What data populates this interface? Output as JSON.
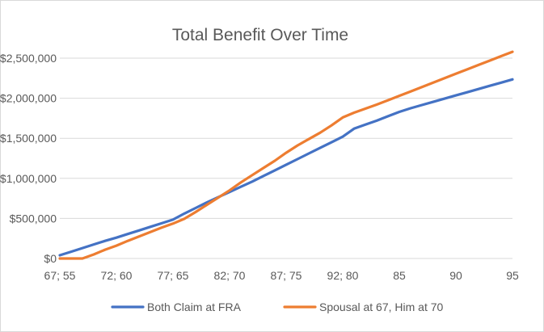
{
  "chart_data": {
    "type": "line",
    "title": "Total Benefit Over Time",
    "xlabel": "",
    "ylabel": "",
    "x": [
      "67; 55",
      "68; 56",
      "69; 57",
      "70; 58",
      "71; 59",
      "72; 60",
      "73; 61",
      "74; 62",
      "75; 63",
      "76; 64",
      "77; 65",
      "78; 66",
      "79; 67",
      "80; 68",
      "81; 69",
      "82; 70",
      "83; 71",
      "84; 72",
      "85; 73",
      "86; 74",
      "87; 75",
      "88; 76",
      "89; 77",
      "90; 78",
      "91; 79",
      "92; 80",
      "93; 81",
      "94; 82",
      "95; 83",
      "84",
      "85",
      "86",
      "87",
      "88",
      "89",
      "90",
      "91",
      "92",
      "93",
      "94",
      "95"
    ],
    "tick_labels": [
      "67; 55",
      "72; 60",
      "77; 65",
      "82; 70",
      "87; 75",
      "92; 80",
      "85",
      "90",
      "95"
    ],
    "tick_indices": [
      0,
      5,
      10,
      15,
      20,
      25,
      30,
      35,
      40
    ],
    "ylim": [
      0,
      2500000
    ],
    "y_ticks": [
      0,
      500000,
      1000000,
      1500000,
      2000000,
      2500000
    ],
    "y_tick_labels": [
      "$0",
      "$500,000",
      "$1,000,000",
      "$1,500,000",
      "$2,000,000",
      "$2,500,000"
    ],
    "grid": true,
    "legend_position": "bottom",
    "series": [
      {
        "name": "Both Claim at FRA",
        "color": "#4472C4",
        "values": [
          40000,
          85000,
          130000,
          175000,
          220000,
          260000,
          305000,
          350000,
          395000,
          440000,
          485000,
          560000,
          630000,
          700000,
          765000,
          830000,
          895000,
          960000,
          1030000,
          1100000,
          1170000,
          1240000,
          1310000,
          1380000,
          1450000,
          1520000,
          1620000,
          1670000,
          1720000,
          1775000,
          1830000,
          1875000,
          1915000,
          1955000,
          1995000,
          2035000,
          2075000,
          2115000,
          2155000,
          2195000,
          2235000
        ]
      },
      {
        "name": "Spousal at 67, Him at 70",
        "color": "#ED7D31",
        "values": [
          0,
          0,
          0,
          50000,
          110000,
          160000,
          220000,
          275000,
          330000,
          385000,
          435000,
          495000,
          580000,
          670000,
          760000,
          850000,
          950000,
          1040000,
          1130000,
          1220000,
          1320000,
          1410000,
          1490000,
          1570000,
          1660000,
          1760000,
          1820000,
          1870000,
          1920000,
          1975000,
          2030000,
          2085000,
          2140000,
          2195000,
          2250000,
          2305000,
          2360000,
          2415000,
          2470000,
          2525000,
          2580000
        ]
      }
    ]
  }
}
